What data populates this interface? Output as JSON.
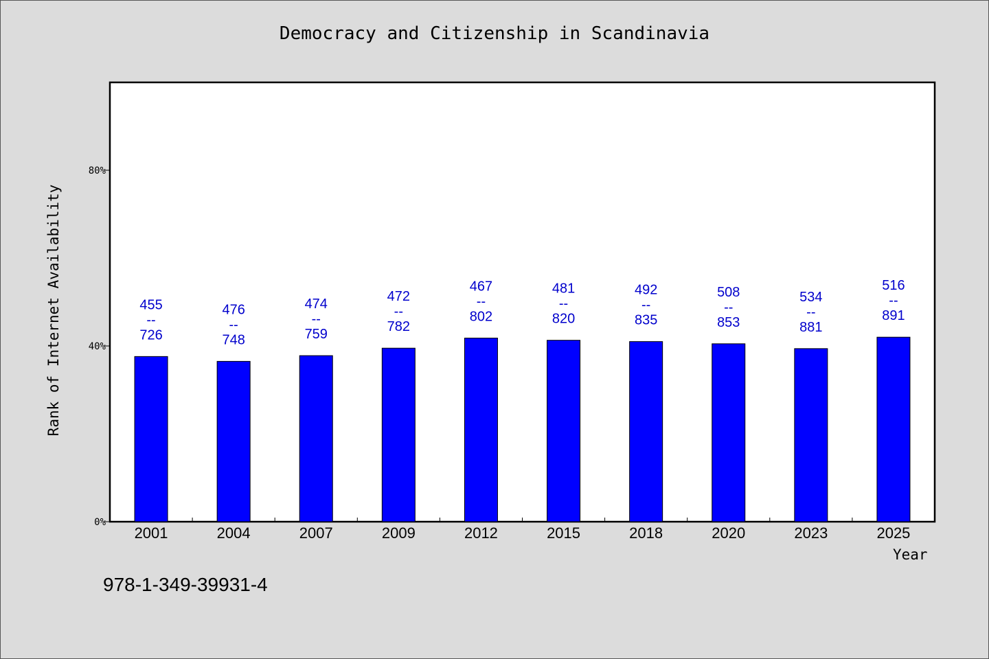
{
  "chart_data": {
    "type": "bar",
    "title": "Democracy and Citizenship in Scandinavia",
    "xlabel": "Year",
    "ylabel": "Rank of Internet Availability",
    "categories": [
      "2001",
      "2004",
      "2007",
      "2009",
      "2012",
      "2015",
      "2018",
      "2020",
      "2023",
      "2025"
    ],
    "values": [
      0.376,
      0.365,
      0.378,
      0.395,
      0.418,
      0.413,
      0.41,
      0.405,
      0.394,
      0.42
    ],
    "data_labels": [
      [
        "455",
        "--",
        "726"
      ],
      [
        "476",
        "--",
        "748"
      ],
      [
        "474",
        "--",
        "759"
      ],
      [
        "472",
        "--",
        "782"
      ],
      [
        "467",
        "--",
        "802"
      ],
      [
        "481",
        "--",
        "820"
      ],
      [
        "492",
        "--",
        "835"
      ],
      [
        "508",
        "--",
        "853"
      ],
      [
        "534",
        "--",
        "881"
      ],
      [
        "516",
        "--",
        "891"
      ]
    ],
    "ylim": [
      0,
      1.0
    ],
    "yticks": [
      0,
      0.4,
      0.8
    ],
    "ytick_labels": [
      "0%",
      "40%",
      "80%"
    ],
    "grid": false,
    "bar_color": "#0000ff",
    "label_color": "#0000cc",
    "plot_background": "#ffffff",
    "page_background": "#dcdcdc"
  },
  "footnote": "978-1-349-39931-4"
}
